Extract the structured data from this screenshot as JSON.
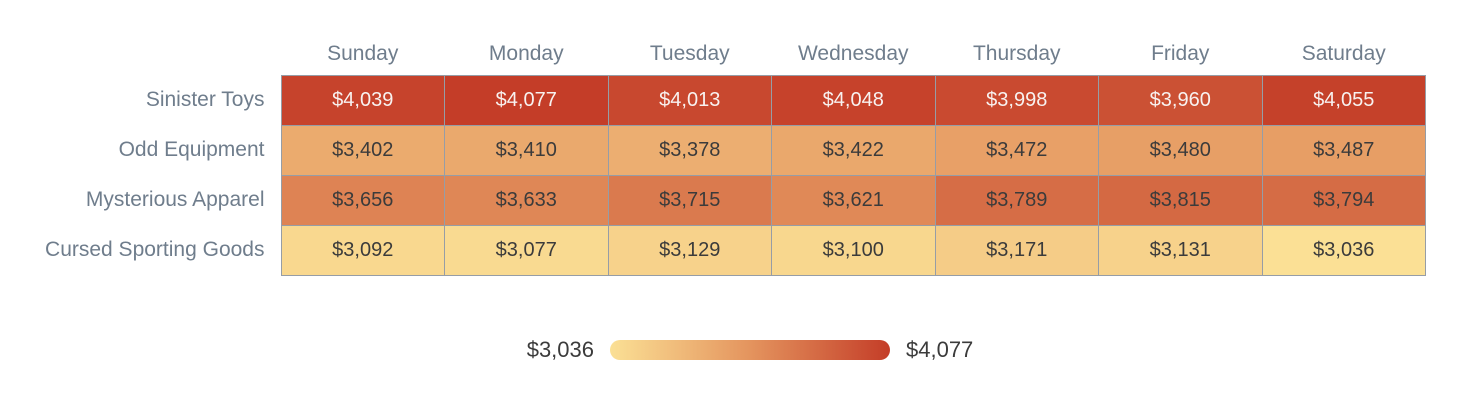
{
  "chart_data": {
    "type": "heatmap",
    "title": "",
    "value_prefix": "$",
    "columns": [
      "Sunday",
      "Monday",
      "Tuesday",
      "Wednesday",
      "Thursday",
      "Friday",
      "Saturday"
    ],
    "rows": [
      "Sinister Toys",
      "Odd Equipment",
      "Mysterious Apparel",
      "Cursed Sporting Goods"
    ],
    "values": [
      [
        4039,
        4077,
        4013,
        4048,
        3998,
        3960,
        4055
      ],
      [
        3402,
        3410,
        3378,
        3422,
        3472,
        3480,
        3487
      ],
      [
        3656,
        3633,
        3715,
        3621,
        3789,
        3815,
        3794
      ],
      [
        3092,
        3077,
        3129,
        3100,
        3171,
        3131,
        3036
      ]
    ],
    "min": 3036,
    "max": 4077,
    "legend": {
      "min_label": "$3,036",
      "max_label": "$4,077"
    },
    "colors": {
      "scale_start": "#fbe095",
      "scale_mid": "#e4945e",
      "scale_end": "#c43d28",
      "grid": "#969da6",
      "axis_label": "#6f7d8c",
      "value_dark": "#3b3b3b",
      "value_light": "#f8f2f0",
      "background": "#ffffff"
    },
    "layout": {
      "grid": "on",
      "legend_position": "bottom-center"
    }
  }
}
